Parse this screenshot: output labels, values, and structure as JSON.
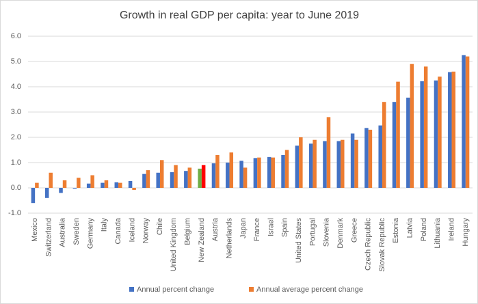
{
  "chart_data": {
    "type": "bar",
    "title": "Growth in real GDP per capita: year to June 2019",
    "categories": [
      "Mexico",
      "Switzerland",
      "Australia",
      "Sweden",
      "Germany",
      "Italy",
      "Canada",
      "Iceland",
      "Norway",
      "Chile",
      "United Kingdom",
      "Belgium",
      "New Zealand",
      "Austria",
      "Netherlands",
      "Japan",
      "France",
      "Israel",
      "Spain",
      "United States",
      "Portugal",
      "Slovenia",
      "Denmark",
      "Greece",
      "Czech Republic",
      "Slovak Republic",
      "Estonia",
      "Latvia",
      "Poland",
      "Lithuania",
      "Ireland",
      "Hungary"
    ],
    "series": [
      {
        "name": "Annual percent change",
        "color": "#4472c4",
        "values": [
          -0.6,
          -0.4,
          -0.2,
          -0.03,
          0.17,
          0.2,
          0.22,
          0.27,
          0.55,
          0.6,
          0.62,
          0.67,
          0.76,
          0.97,
          1.0,
          1.07,
          1.18,
          1.22,
          1.3,
          1.67,
          1.75,
          1.85,
          1.85,
          2.15,
          2.37,
          2.47,
          3.4,
          3.57,
          4.22,
          4.25,
          4.58,
          5.25
        ],
        "colors": [
          "#4472c4",
          "#4472c4",
          "#4472c4",
          "#4472c4",
          "#4472c4",
          "#4472c4",
          "#4472c4",
          "#4472c4",
          "#4472c4",
          "#4472c4",
          "#4472c4",
          "#4472c4",
          "#70ad47",
          "#4472c4",
          "#4472c4",
          "#4472c4",
          "#4472c4",
          "#4472c4",
          "#4472c4",
          "#4472c4",
          "#4472c4",
          "#4472c4",
          "#4472c4",
          "#4472c4",
          "#4472c4",
          "#4472c4",
          "#4472c4",
          "#4472c4",
          "#4472c4",
          "#4472c4",
          "#4472c4",
          "#4472c4"
        ]
      },
      {
        "name": "Annual average percent change",
        "color": "#ed7d31",
        "values": [
          0.2,
          0.6,
          0.3,
          0.4,
          0.5,
          0.3,
          0.2,
          -0.08,
          0.7,
          1.1,
          0.9,
          0.8,
          0.9,
          1.3,
          1.4,
          0.8,
          1.2,
          1.2,
          1.5,
          2.0,
          1.9,
          2.8,
          1.9,
          1.9,
          2.3,
          3.4,
          4.2,
          4.9,
          4.8,
          4.4,
          4.6,
          5.2
        ],
        "colors": [
          "#ed7d31",
          "#ed7d31",
          "#ed7d31",
          "#ed7d31",
          "#ed7d31",
          "#ed7d31",
          "#ed7d31",
          "#ed7d31",
          "#ed7d31",
          "#ed7d31",
          "#ed7d31",
          "#ed7d31",
          "#ff0000",
          "#ed7d31",
          "#ed7d31",
          "#ed7d31",
          "#ed7d31",
          "#ed7d31",
          "#ed7d31",
          "#ed7d31",
          "#ed7d31",
          "#ed7d31",
          "#ed7d31",
          "#ed7d31",
          "#ed7d31",
          "#ed7d31",
          "#ed7d31",
          "#ed7d31",
          "#ed7d31",
          "#ed7d31",
          "#ed7d31",
          "#ed7d31"
        ]
      }
    ],
    "ylim": [
      -1,
      6
    ],
    "yticks": [
      {
        "value": -1,
        "label": "-1.0"
      },
      {
        "value": 0,
        "label": "0.0"
      },
      {
        "value": 1,
        "label": "1.0"
      },
      {
        "value": 2,
        "label": "2.0"
      },
      {
        "value": 3,
        "label": "3.0"
      },
      {
        "value": 4,
        "label": "4.0"
      },
      {
        "value": 5,
        "label": "5.0"
      },
      {
        "value": 6,
        "label": "6.0"
      }
    ],
    "grid": true
  }
}
